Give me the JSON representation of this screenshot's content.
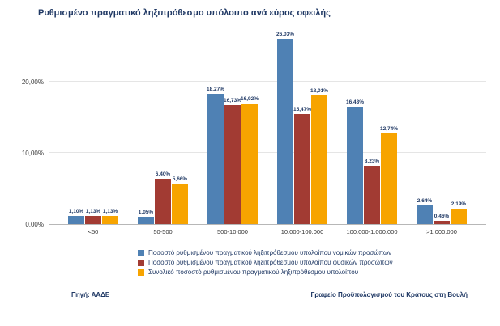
{
  "title": "Ρυθμισμένο πραγματικό ληξιπρόθεσμο υπόλοιπο ανά εύρος οφειλής",
  "chart_data": {
    "type": "bar",
    "categories": [
      "<50",
      "50-500",
      "500-10.000",
      "10.000-100.000",
      "100.000-1.000.000",
      ">1.000.000"
    ],
    "series": [
      {
        "name": "Ποσοστό ρυθμισμένου πραγματικού ληξιπρόθεσμου υπολοίπου νομικών προσώπων",
        "color": "#4f81b4",
        "values": [
          1.1,
          1.05,
          18.27,
          26.03,
          16.43,
          2.64
        ],
        "labels": [
          "1,10%",
          "1,05%",
          "18,27%",
          "26,03%",
          "16,43%",
          "2,64%"
        ]
      },
      {
        "name": "Ποσοστό ρυθμισμένου πραγματικού ληξιπρόθεσμου υπολοίπου φυσικών προσώπων",
        "color": "#a23b33",
        "values": [
          1.13,
          6.4,
          16.73,
          15.47,
          8.23,
          0.46
        ],
        "labels": [
          "1,13%",
          "6,40%",
          "16,73%",
          "15,47%",
          "8,23%",
          "0,46%"
        ]
      },
      {
        "name": "Συνολικό ποσοστό ρυθμισμένου πραγματικού ληξιπρόθεσμου υπολοίπου",
        "color": "#f7a400",
        "values": [
          1.13,
          5.66,
          16.92,
          18.01,
          12.74,
          2.19
        ],
        "labels": [
          "1,13%",
          "5,66%",
          "16,92%",
          "18,01%",
          "12,74%",
          "2,19%"
        ]
      }
    ],
    "xlabel": "",
    "ylabel": "",
    "ylim": [
      0,
      27
    ],
    "yticks": [
      {
        "value": 0,
        "label": "0,00%"
      },
      {
        "value": 10,
        "label": "10,00%"
      },
      {
        "value": 20,
        "label": "20,00%"
      }
    ],
    "grid": true,
    "legend_position": "bottom"
  },
  "footer": {
    "source": "Πηγή: ΑΑΔΕ",
    "credit": "Γραφείο Προϋπολογισμού του Κράτους στη Βουλή"
  }
}
